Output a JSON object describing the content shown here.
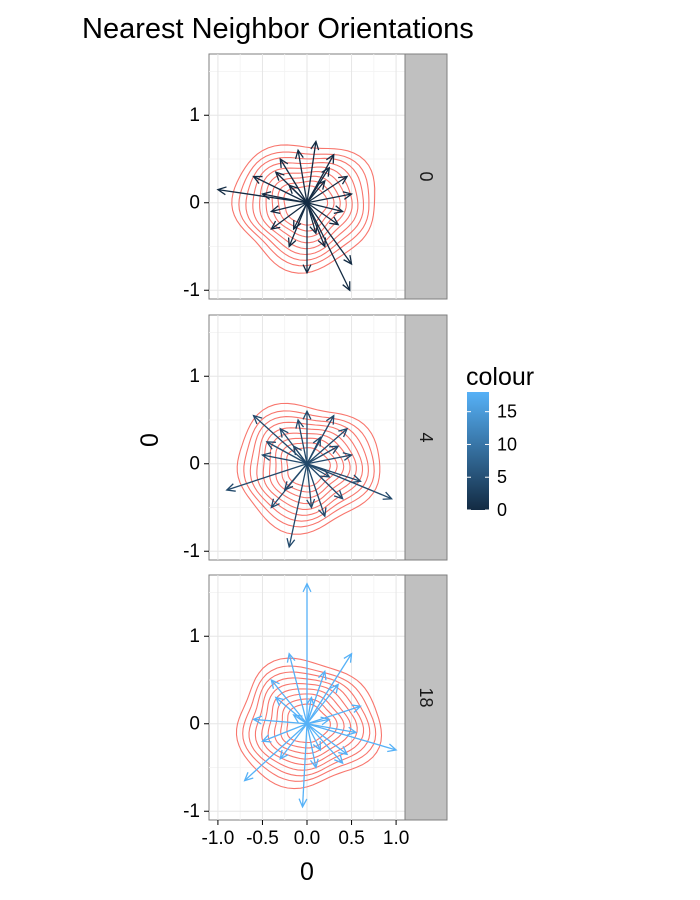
{
  "chart_data": {
    "type": "line",
    "title": "Nearest Neighbor Orientations",
    "xlabel": "0",
    "ylabel": "0",
    "xlim": [
      -1.1,
      1.1
    ],
    "ylim": [
      -1.1,
      1.7
    ],
    "x_ticks": [
      "-1.0",
      "-0.5",
      "0.0",
      "0.5",
      "1.0"
    ],
    "y_ticks": [
      "1",
      "0",
      "-1"
    ],
    "grid": true,
    "facets": [
      "0",
      "4",
      "18"
    ],
    "legend": {
      "title": "colour",
      "position": "right",
      "ticks": [
        "15",
        "10",
        "5",
        "0"
      ],
      "range": [
        0,
        18
      ],
      "low_color": "#132b43",
      "high_color": "#56b1f7"
    },
    "contour_color": "#f8766d",
    "panels": [
      {
        "facet": "0",
        "colour": 0,
        "arrows": [
          [
            -1.0,
            0.15
          ],
          [
            -0.6,
            0.3
          ],
          [
            -0.5,
            0.1
          ],
          [
            -0.4,
            -0.3
          ],
          [
            -0.3,
            0.5
          ],
          [
            -0.2,
            -0.5
          ],
          [
            -0.1,
            0.6
          ],
          [
            0.0,
            -0.8
          ],
          [
            0.1,
            0.7
          ],
          [
            0.2,
            -0.5
          ],
          [
            0.3,
            0.55
          ],
          [
            0.35,
            -0.25
          ],
          [
            0.45,
            0.3
          ],
          [
            0.5,
            -0.7
          ],
          [
            0.5,
            0.1
          ],
          [
            0.2,
            0.25
          ],
          [
            -0.2,
            0.2
          ],
          [
            0.4,
            -0.1
          ],
          [
            -0.4,
            -0.1
          ],
          [
            0.1,
            -0.35
          ],
          [
            0.48,
            -1.0
          ],
          [
            -0.35,
            0.35
          ],
          [
            0.25,
            0.4
          ],
          [
            -0.15,
            -0.3
          ]
        ],
        "contours": [
          [
            0.24,
            0.22
          ],
          [
            0.31,
            0.28
          ],
          [
            0.38,
            0.34
          ],
          [
            0.45,
            0.4
          ],
          [
            0.52,
            0.46
          ],
          [
            0.59,
            0.52
          ],
          [
            0.66,
            0.58
          ],
          [
            0.73,
            0.64
          ],
          [
            0.8,
            0.72
          ]
        ],
        "contour_center": [
          -0.02,
          -0.02
        ]
      },
      {
        "facet": "4",
        "colour": 4,
        "arrows": [
          [
            -0.6,
            0.55
          ],
          [
            -0.9,
            -0.3
          ],
          [
            -0.2,
            -0.95
          ],
          [
            0.95,
            -0.4
          ],
          [
            0.5,
            0.1
          ],
          [
            0.3,
            0.55
          ],
          [
            0.0,
            0.6
          ],
          [
            -0.3,
            0.4
          ],
          [
            -0.5,
            0.1
          ],
          [
            0.2,
            -0.6
          ],
          [
            -0.4,
            -0.5
          ],
          [
            0.6,
            -0.2
          ],
          [
            0.4,
            -0.4
          ],
          [
            -0.1,
            0.5
          ],
          [
            0.15,
            0.3
          ],
          [
            -0.25,
            -0.3
          ],
          [
            0.35,
            0.2
          ],
          [
            -0.45,
            0.25
          ],
          [
            0.05,
            -0.5
          ],
          [
            0.45,
            0.4
          ],
          [
            -0.15,
            0.2
          ],
          [
            0.25,
            -0.15
          ]
        ],
        "contours": [
          [
            0.24,
            0.22
          ],
          [
            0.31,
            0.28
          ],
          [
            0.38,
            0.34
          ],
          [
            0.45,
            0.4
          ],
          [
            0.52,
            0.46
          ],
          [
            0.59,
            0.52
          ],
          [
            0.66,
            0.58
          ],
          [
            0.73,
            0.64
          ],
          [
            0.8,
            0.72
          ]
        ],
        "contour_center": [
          0.0,
          -0.03
        ]
      },
      {
        "facet": "18",
        "colour": 18,
        "arrows": [
          [
            0.0,
            1.6
          ],
          [
            -0.7,
            -0.65
          ],
          [
            -0.05,
            -0.95
          ],
          [
            1.0,
            -0.3
          ],
          [
            0.5,
            0.8
          ],
          [
            -0.2,
            0.8
          ],
          [
            0.2,
            0.6
          ],
          [
            -0.6,
            0.05
          ],
          [
            0.6,
            0.2
          ],
          [
            -0.4,
            0.5
          ],
          [
            0.4,
            -0.45
          ],
          [
            0.1,
            -0.5
          ],
          [
            -0.3,
            -0.4
          ],
          [
            0.55,
            -0.1
          ],
          [
            -0.5,
            -0.2
          ],
          [
            0.35,
            0.45
          ],
          [
            0.05,
            0.3
          ],
          [
            -0.15,
            0.1
          ],
          [
            0.25,
            0.05
          ],
          [
            0.45,
            -0.35
          ],
          [
            -0.35,
            0.3
          ],
          [
            0.15,
            -0.3
          ]
        ],
        "contours": [
          [
            0.24,
            0.22
          ],
          [
            0.31,
            0.28
          ],
          [
            0.38,
            0.34
          ],
          [
            0.45,
            0.4
          ],
          [
            0.52,
            0.46
          ],
          [
            0.59,
            0.52
          ],
          [
            0.66,
            0.58
          ],
          [
            0.73,
            0.64
          ],
          [
            0.8,
            0.72
          ]
        ],
        "contour_center": [
          0.0,
          0.0
        ]
      }
    ]
  }
}
